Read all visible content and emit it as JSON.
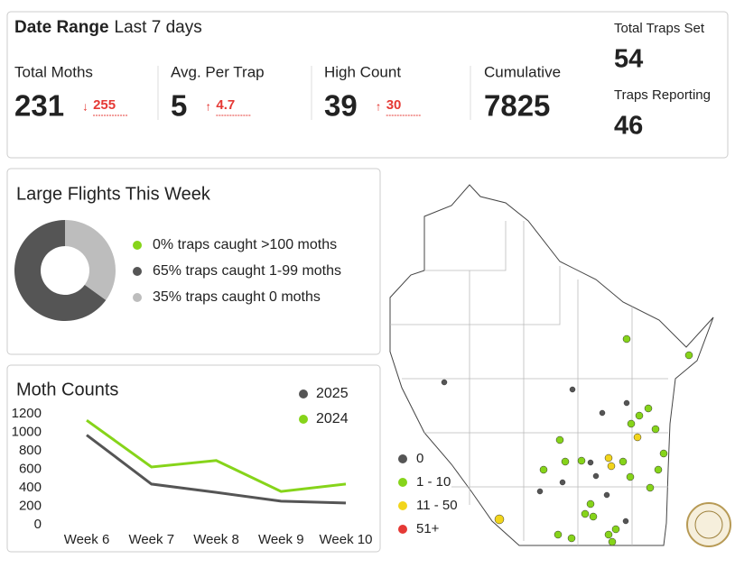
{
  "header": {
    "date_range_label": "Date Range",
    "date_range_value": "Last 7 days"
  },
  "kpis": [
    {
      "label": "Total Moths",
      "value": 231,
      "change": 255,
      "arrow": "↓"
    },
    {
      "label": "Avg. Per Trap",
      "value": 5,
      "change": 4.7,
      "arrow": "↑"
    },
    {
      "label": "High Count",
      "value": 39,
      "change": 30,
      "arrow": "↑"
    },
    {
      "label": "Cumulative",
      "value": 7825
    }
  ],
  "traps": [
    {
      "label": "Total Traps Set",
      "value": 54
    },
    {
      "label": "Traps Reporting",
      "value": 46
    }
  ],
  "chart_data": [
    {
      "type": "donut",
      "title": "Large Flights This Week",
      "labels": [
        "0% traps caught >100 moths",
        "65% traps caught 1-99 moths",
        "35% traps caught 0 moths"
      ],
      "values": [
        0,
        65,
        35
      ],
      "colors": [
        "#86d41a",
        "#555555",
        "#bdbdbd"
      ]
    },
    {
      "type": "line",
      "title": "Moth Counts",
      "categories": [
        "Week 6",
        "Week 7",
        "Week 8",
        "Week 9",
        "Week 10"
      ],
      "series": [
        {
          "name": "2025",
          "color": "#555555",
          "values": [
            970,
            440,
            350,
            255,
            235
          ]
        },
        {
          "name": "2024",
          "color": "#86d41a",
          "values": [
            1130,
            625,
            695,
            360,
            440
          ]
        }
      ],
      "ylim": [
        0,
        1200
      ],
      "yticks": [
        0,
        200,
        400,
        600,
        800,
        1000,
        1200
      ]
    }
  ],
  "map": {
    "legend": [
      {
        "label": "0",
        "color": "#555555"
      },
      {
        "label": "1 - 10",
        "color": "#86d41a"
      },
      {
        "label": "11 - 50",
        "color": "#f2d51b"
      },
      {
        "label": "51+",
        "color": "#e53935"
      }
    ]
  }
}
